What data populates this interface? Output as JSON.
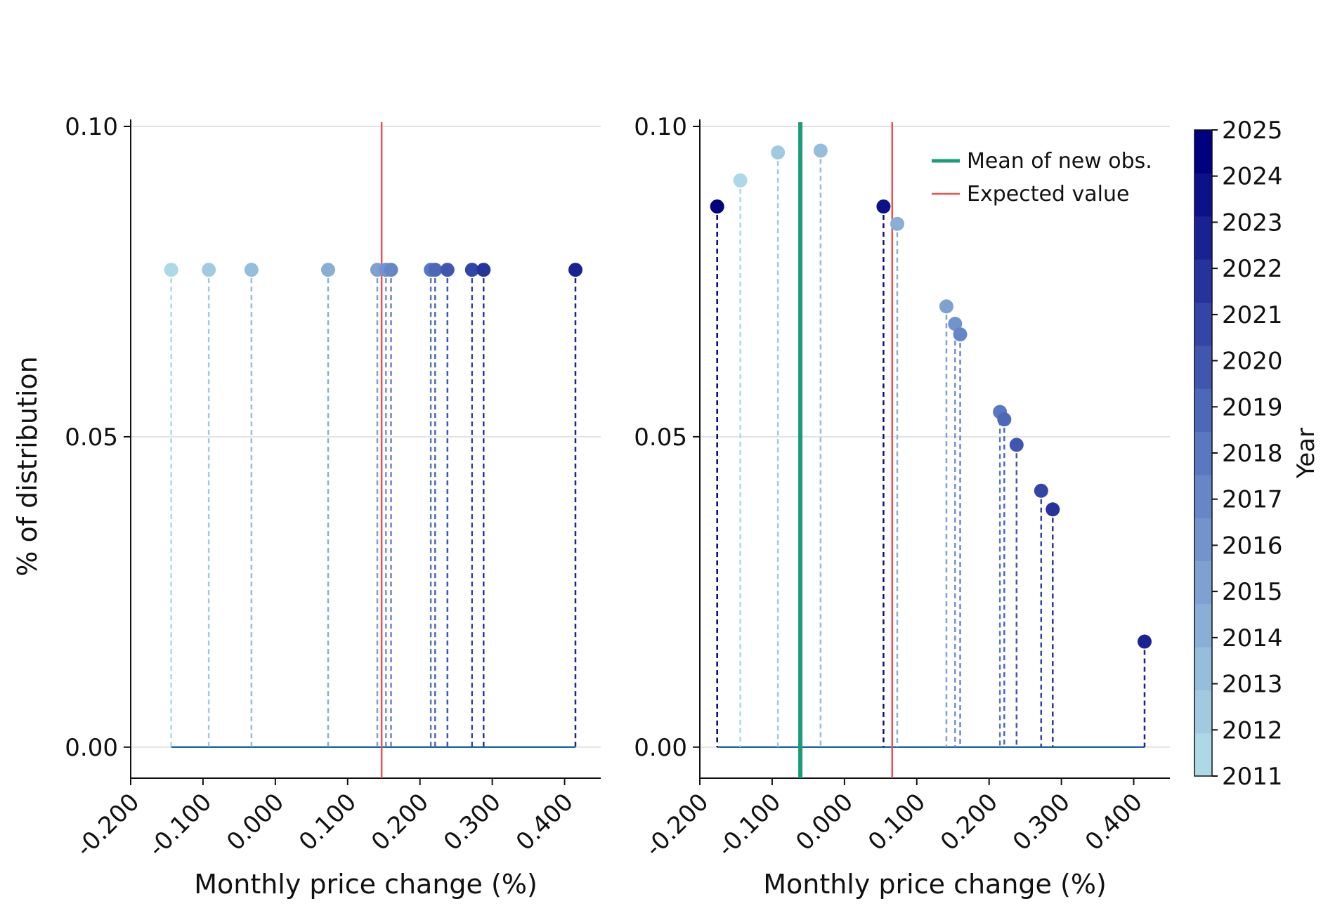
{
  "chart_data": [
    {
      "type": "scatter",
      "title": "",
      "xlabel": "Monthly price change (%)",
      "ylabel": "% of distribution",
      "xlim": [
        -0.2,
        0.45
      ],
      "ylim": [
        -0.005,
        0.1
      ],
      "xticks": [
        "-0.200",
        "-0.100",
        "0.000",
        "0.100",
        "0.200",
        "0.300",
        "0.400"
      ],
      "yticks": [
        "0.00",
        "0.05",
        "0.10"
      ],
      "grid": true,
      "legend": null,
      "expected_value": 0.147,
      "baseline": {
        "from": -0.144,
        "to": 0.415,
        "y": 0,
        "color": "#1f66b0"
      },
      "points": [
        {
          "x": -0.144,
          "y": 0.0769,
          "year": 2011
        },
        {
          "x": -0.092,
          "y": 0.0769,
          "year": 2012
        },
        {
          "x": -0.033,
          "y": 0.0769,
          "year": 2013
        },
        {
          "x": 0.073,
          "y": 0.0769,
          "year": 2014
        },
        {
          "x": 0.141,
          "y": 0.0769,
          "year": 2015
        },
        {
          "x": 0.153,
          "y": 0.0769,
          "year": 2016
        },
        {
          "x": 0.16,
          "y": 0.0769,
          "year": 2017
        },
        {
          "x": 0.215,
          "y": 0.0769,
          "year": 2018
        },
        {
          "x": 0.221,
          "y": 0.0769,
          "year": 2019
        },
        {
          "x": 0.238,
          "y": 0.0769,
          "year": 2020
        },
        {
          "x": 0.272,
          "y": 0.0769,
          "year": 2021
        },
        {
          "x": 0.288,
          "y": 0.0769,
          "year": 2022
        },
        {
          "x": 0.415,
          "y": 0.0769,
          "year": 2023
        }
      ]
    },
    {
      "type": "scatter",
      "title": "",
      "xlabel": "Monthly price change (%)",
      "ylabel": "",
      "xlim": [
        -0.2,
        0.45
      ],
      "ylim": [
        -0.005,
        0.1
      ],
      "xticks": [
        "-0.200",
        "-0.100",
        "0.000",
        "0.100",
        "0.200",
        "0.300",
        "0.400"
      ],
      "yticks": [
        "0.00",
        "0.05",
        "0.10"
      ],
      "grid": true,
      "legend": {
        "position": "top-right",
        "entries": [
          {
            "label": "Mean of new obs.",
            "color": "#1a9c7a"
          },
          {
            "label": "Expected value",
            "color": "#f05050"
          }
        ]
      },
      "mean_of_new_obs": -0.061,
      "expected_value": 0.066,
      "baseline": {
        "from": -0.176,
        "to": 0.415,
        "y": 0,
        "color": "#1f66b0"
      },
      "points": [
        {
          "x": -0.176,
          "y": 0.0871,
          "year": 2025
        },
        {
          "x": -0.144,
          "y": 0.0913,
          "year": 2011
        },
        {
          "x": -0.092,
          "y": 0.0958,
          "year": 2012
        },
        {
          "x": -0.033,
          "y": 0.0961,
          "year": 2013
        },
        {
          "x": 0.054,
          "y": 0.0871,
          "year": 2024
        },
        {
          "x": 0.073,
          "y": 0.0843,
          "year": 2014
        },
        {
          "x": 0.141,
          "y": 0.071,
          "year": 2015
        },
        {
          "x": 0.153,
          "y": 0.0682,
          "year": 2016
        },
        {
          "x": 0.16,
          "y": 0.0665,
          "year": 2017
        },
        {
          "x": 0.215,
          "y": 0.054,
          "year": 2018
        },
        {
          "x": 0.221,
          "y": 0.0528,
          "year": 2019
        },
        {
          "x": 0.238,
          "y": 0.0487,
          "year": 2020
        },
        {
          "x": 0.272,
          "y": 0.0413,
          "year": 2021
        },
        {
          "x": 0.288,
          "y": 0.0383,
          "year": 2022
        },
        {
          "x": 0.415,
          "y": 0.017,
          "year": 2023
        }
      ]
    }
  ],
  "colorbar": {
    "label": "Year",
    "min": 2011,
    "max": 2025,
    "ticks": [
      "2011",
      "2012",
      "2013",
      "2014",
      "2015",
      "2016",
      "2017",
      "2018",
      "2019",
      "2020",
      "2021",
      "2022",
      "2023",
      "2024",
      "2025"
    ],
    "color_low": "#add8e6",
    "color_mid": "#5a78c2",
    "color_high": "#000080"
  },
  "colors": {
    "grid": "#e3e3e3",
    "axis": "#111111",
    "expected_value": "#f05050",
    "mean_of_new_obs": "#1a9c7a"
  }
}
